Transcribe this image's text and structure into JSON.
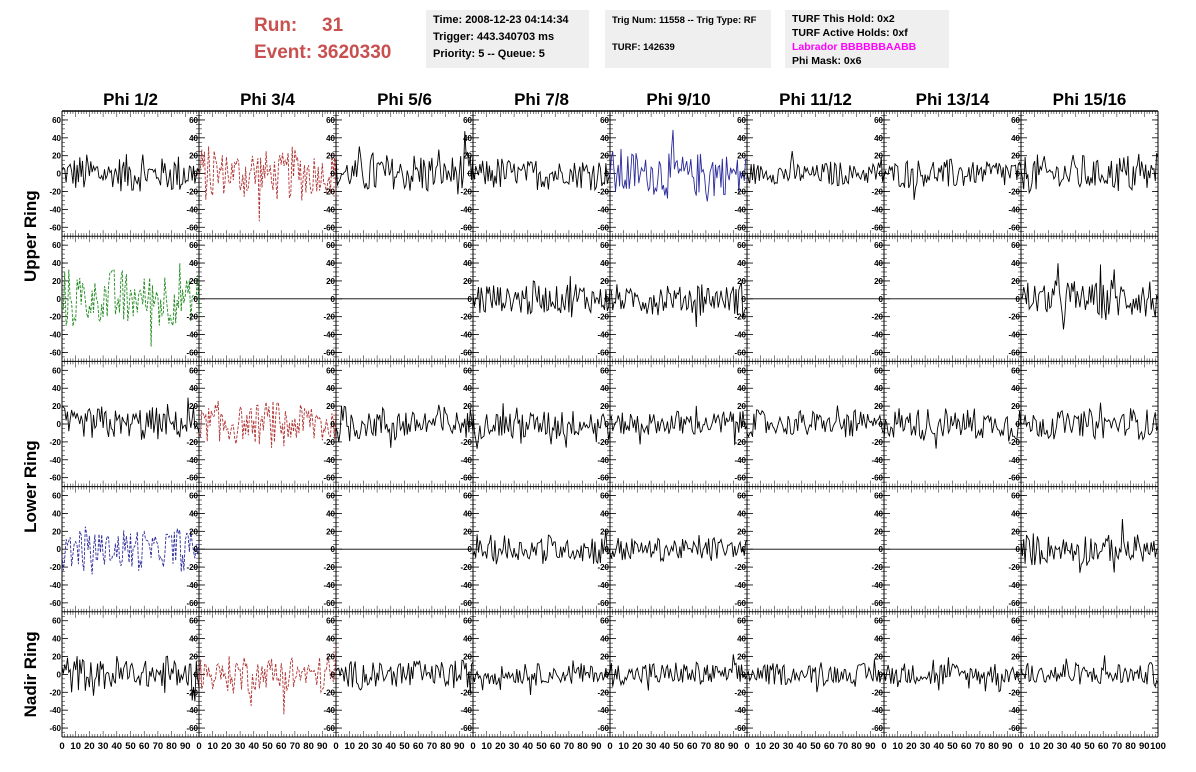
{
  "header": {
    "run_label": "Run:",
    "run_value": "31",
    "event_label": "Event:",
    "event_value": "3620330"
  },
  "info_time": {
    "time": "Time: 2008-12-23 04:14:34",
    "trigger": "Trigger: 443.340703 ms",
    "priority": "Priority: 5 -- Queue: 5"
  },
  "info_trig": {
    "trig": "Trig Num: 11558 -- Trig Type: RF",
    "turf": "TURF: 142639"
  },
  "info_turf": {
    "this_hold": "TURF This Hold: 0x2",
    "active_holds": "TURF Active Holds: 0xf",
    "labrador_label": "Labrador",
    "labrador_value": "BBBBBBAABB",
    "phi_mask": "Phi Mask: 0x6"
  },
  "colors": {
    "trace": "#000000",
    "red_trace": "#b03030",
    "green_trace": "#1f8a1f",
    "blue_trace": "#2a2a9a",
    "run_text": "#c8504f",
    "labrador": "#ff00ff",
    "info_bg": "#efefef"
  },
  "chart_data": {
    "type": "line",
    "column_labels": [
      "Phi 1/2",
      "Phi 3/4",
      "Phi 5/6",
      "Phi 7/8",
      "Phi 9/10",
      "Phi 11/12",
      "Phi 13/14",
      "Phi 15/16"
    ],
    "row_labels": [
      "Upper Ring",
      "Lower Ring",
      "Nadir Ring"
    ],
    "xlim": [
      0,
      100
    ],
    "ylim": [
      -70,
      70
    ],
    "y_ticks": [
      -60,
      -40,
      -20,
      0,
      20,
      40,
      60
    ],
    "x_ticks": [
      0,
      10,
      20,
      30,
      40,
      50,
      60,
      70,
      80,
      90,
      100
    ],
    "panels": [
      [
        {
          "style": "solid",
          "color": "black",
          "amp": 14,
          "samples": 100
        },
        {
          "style": "dashed",
          "color": "red",
          "amp": 20,
          "samples": 100
        },
        {
          "style": "solid",
          "color": "black",
          "amp": 16,
          "samples": 100
        },
        {
          "style": "solid",
          "color": "black",
          "amp": 12,
          "samples": 100
        },
        {
          "style": "solid",
          "color": "blue",
          "amp": 18,
          "samples": 100
        },
        {
          "style": "solid",
          "color": "black",
          "amp": 9,
          "samples": 100
        },
        {
          "style": "solid",
          "color": "black",
          "amp": 11,
          "samples": 100
        },
        {
          "style": "solid",
          "color": "black",
          "amp": 14,
          "samples": 100
        }
      ],
      [
        {
          "style": "dashed",
          "color": "green",
          "amp": 22,
          "samples": 100
        },
        {
          "style": "flat",
          "color": "black",
          "amp": 0,
          "samples": 100
        },
        {
          "style": "flat",
          "color": "black",
          "amp": 0,
          "samples": 100
        },
        {
          "style": "solid",
          "color": "black",
          "amp": 13,
          "samples": 100
        },
        {
          "style": "solid",
          "color": "black",
          "amp": 12,
          "samples": 100
        },
        {
          "style": "flat",
          "color": "black",
          "amp": 0,
          "samples": 100
        },
        {
          "style": "flat",
          "color": "black",
          "amp": 0,
          "samples": 100
        },
        {
          "style": "solid",
          "color": "black",
          "amp": 15,
          "samples": 100
        }
      ],
      [
        {
          "style": "solid",
          "color": "black",
          "amp": 13,
          "samples": 100
        },
        {
          "style": "dashed",
          "color": "red",
          "amp": 17,
          "samples": 100
        },
        {
          "style": "solid",
          "color": "black",
          "amp": 14,
          "samples": 100
        },
        {
          "style": "solid",
          "color": "black",
          "amp": 12,
          "samples": 100
        },
        {
          "style": "solid",
          "color": "black",
          "amp": 10,
          "samples": 100
        },
        {
          "style": "solid",
          "color": "black",
          "amp": 10,
          "samples": 100
        },
        {
          "style": "solid",
          "color": "black",
          "amp": 12,
          "samples": 100
        },
        {
          "style": "solid",
          "color": "black",
          "amp": 11,
          "samples": 100
        }
      ],
      [
        {
          "style": "dashed",
          "color": "blue",
          "amp": 16,
          "samples": 100
        },
        {
          "style": "flat",
          "color": "black",
          "amp": 0,
          "samples": 100
        },
        {
          "style": "flat",
          "color": "black",
          "amp": 0,
          "samples": 100
        },
        {
          "style": "solid",
          "color": "black",
          "amp": 11,
          "samples": 100
        },
        {
          "style": "solid",
          "color": "black",
          "amp": 9,
          "samples": 100
        },
        {
          "style": "flat",
          "color": "black",
          "amp": 0,
          "samples": 100
        },
        {
          "style": "flat",
          "color": "black",
          "amp": 0,
          "samples": 100
        },
        {
          "style": "solid",
          "color": "black",
          "amp": 12,
          "samples": 100
        }
      ],
      [
        {
          "style": "solid",
          "color": "black",
          "amp": 14,
          "samples": 100
        },
        {
          "style": "dashed",
          "color": "red",
          "amp": 15,
          "samples": 100
        },
        {
          "style": "solid",
          "color": "black",
          "amp": 11,
          "samples": 100
        },
        {
          "style": "solid",
          "color": "black",
          "amp": 8,
          "samples": 100
        },
        {
          "style": "solid",
          "color": "black",
          "amp": 9,
          "samples": 100
        },
        {
          "style": "solid",
          "color": "black",
          "amp": 8,
          "samples": 100
        },
        {
          "style": "solid",
          "color": "black",
          "amp": 9,
          "samples": 100
        },
        {
          "style": "solid",
          "color": "black",
          "amp": 9,
          "samples": 100
        }
      ]
    ]
  }
}
